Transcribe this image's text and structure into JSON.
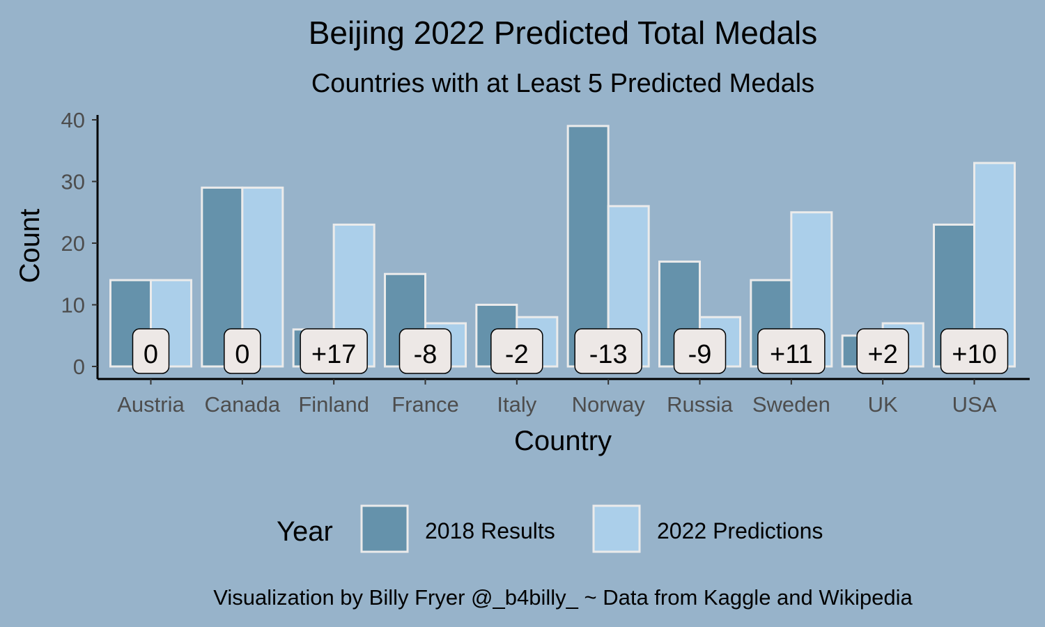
{
  "chart_data": {
    "type": "bar",
    "title": "Beijing 2022 Predicted Total Medals",
    "subtitle": "Countries with at Least 5 Predicted Medals",
    "xlabel": "Country",
    "ylabel": "Count",
    "categories": [
      "Austria",
      "Canada",
      "Finland",
      "France",
      "Italy",
      "Norway",
      "Russia",
      "Sweden",
      "UK",
      "USA"
    ],
    "series": [
      {
        "name": "2018 Results",
        "color": "#6592ab",
        "values": [
          14,
          29,
          6,
          15,
          10,
          39,
          17,
          14,
          5,
          23
        ]
      },
      {
        "name": "2022 Predictions",
        "color": "#abcfea",
        "values": [
          14,
          29,
          23,
          7,
          8,
          26,
          8,
          25,
          7,
          33
        ]
      }
    ],
    "differences": [
      "0",
      "0",
      "+17",
      "-8",
      "-2",
      "-13",
      "-9",
      "+11",
      "+2",
      "+10"
    ],
    "ylim": [
      0,
      40
    ],
    "yticks": [
      0,
      10,
      20,
      30,
      40
    ],
    "grid": false,
    "legend": {
      "title": "Year",
      "position": "bottom"
    },
    "caption": "Visualization by Billy Fryer @_b4billy_ ~ Data from Kaggle and Wikipedia",
    "colors": {
      "background": "#97b3ca",
      "bar_outline": "#ebebeb",
      "label_fill": "#ede8e6",
      "axis": "#000000",
      "tick_label": "#4d4d4d"
    }
  }
}
